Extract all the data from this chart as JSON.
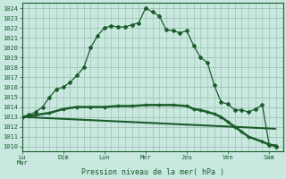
{
  "bg_color": "#c8e8e0",
  "grid_color": "#99bbaa",
  "line_color": "#1a5c2a",
  "title": "Pression niveau de la mer( hPa )",
  "ylim": [
    1009.5,
    1024.5
  ],
  "yticks": [
    1010,
    1011,
    1012,
    1013,
    1014,
    1015,
    1016,
    1017,
    1018,
    1019,
    1020,
    1021,
    1022,
    1023,
    1024
  ],
  "xtick_labels": [
    "Lu|Mar",
    "Dim",
    "Lun",
    "Mer",
    "Jeu",
    "Ven",
    "Sam"
  ],
  "xtick_positions": [
    0,
    36,
    72,
    108,
    144,
    180,
    216
  ],
  "xlim": [
    0,
    228
  ],
  "line1_x": [
    0,
    6,
    12,
    18,
    24,
    30,
    36,
    42,
    48,
    54,
    60,
    66,
    72,
    78,
    84,
    90,
    96,
    102,
    108,
    114,
    120,
    126,
    132,
    138,
    144,
    150,
    156,
    162,
    168,
    174,
    180,
    186,
    192,
    198,
    204,
    210,
    216,
    222
  ],
  "line1_y": [
    1013.0,
    1013.2,
    1013.5,
    1014.0,
    1015.0,
    1015.8,
    1016.0,
    1016.5,
    1017.2,
    1018.0,
    1020.0,
    1021.2,
    1022.0,
    1022.2,
    1022.1,
    1022.1,
    1022.3,
    1022.5,
    1024.0,
    1023.6,
    1023.2,
    1021.8,
    1021.7,
    1021.5,
    1021.7,
    1020.2,
    1019.0,
    1018.5,
    1016.2,
    1014.5,
    1014.3,
    1013.7,
    1013.7,
    1013.5,
    1013.8,
    1014.2,
    1010.2,
    1010.0
  ],
  "line2_x": [
    0,
    6,
    12,
    24,
    36,
    48,
    60,
    72,
    84,
    96,
    108,
    120,
    132,
    144,
    150,
    156,
    162,
    168,
    174,
    180,
    186,
    192,
    198,
    210,
    216,
    222
  ],
  "line2_y": [
    1013.0,
    1013.1,
    1013.2,
    1013.4,
    1013.8,
    1014.0,
    1014.0,
    1014.0,
    1014.1,
    1014.1,
    1014.2,
    1014.2,
    1014.2,
    1014.1,
    1013.8,
    1013.7,
    1013.5,
    1013.3,
    1013.0,
    1012.5,
    1012.0,
    1011.5,
    1011.0,
    1010.5,
    1010.2,
    1010.1
  ],
  "ref_line_x": [
    0,
    222
  ],
  "ref_line_y": [
    1013.0,
    1011.8
  ]
}
